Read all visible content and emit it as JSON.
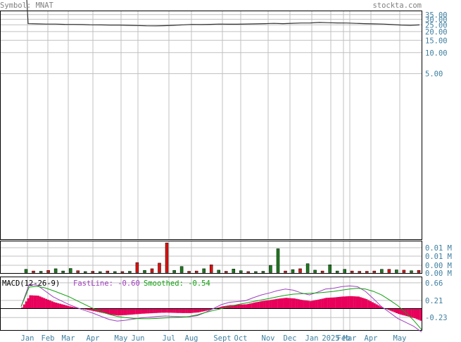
{
  "header": {
    "symbol_label": "Symbol: MNAT",
    "site": "stockta.com"
  },
  "colors": {
    "grid": "#c0c0c0",
    "text_gray": "#808080",
    "price_line": "#333333",
    "vol_up": "#1b7a1b",
    "vol_down": "#dd1111",
    "macd_hist": "#e8005a",
    "fast_line": "#a040c0",
    "smooth_line": "#10a010",
    "fast_label": "#a040c0",
    "smooth_label": "#10a010",
    "axis_label": "#3f7fa0"
  },
  "chart_data": [
    {
      "type": "line",
      "name": "price",
      "x_labels": [
        "Jan",
        "Feb",
        "Mar",
        "Apr",
        "May",
        "Jun",
        "Jul",
        "Aug",
        "Sept",
        "Oct",
        "Nov",
        "Dec",
        "Jan",
        "2025",
        "Feb",
        "Mar",
        "Apr",
        "May"
      ],
      "y_ticks": [
        "35.00",
        "30.00",
        "25.00",
        "20.00",
        "15.00",
        "10.00",
        "5.00"
      ],
      "y_tick_values": [
        35,
        30,
        25,
        20,
        15,
        10,
        5
      ],
      "y_scale": "log",
      "values": [
        220,
        26.0,
        25.8,
        25.6,
        25.6,
        25.4,
        25.3,
        25.2,
        25.0,
        24.9,
        24.8,
        24.8,
        24.6,
        24.4,
        24.2,
        24.1,
        24.3,
        24.6,
        25.0,
        25.3,
        25.2,
        25.4,
        25.6,
        25.5,
        25.5,
        25.7,
        25.8,
        26.0,
        26.2,
        26.0,
        26.3,
        26.5,
        26.6,
        27.0,
        26.8,
        26.6,
        26.5,
        26.2,
        26.0,
        25.8,
        25.6,
        25.2,
        24.8,
        24.6,
        24.9
      ]
    },
    {
      "type": "bar",
      "name": "volume",
      "y_ticks": [
        "0.01 M",
        "0.01 M",
        "0.00 M",
        "0.00 M"
      ],
      "bars": [
        {
          "d": "Jan",
          "v": 0.0012,
          "up": true
        },
        {
          "d": "Jan",
          "v": 0.0006,
          "up": false
        },
        {
          "d": "Feb",
          "v": 0.0005,
          "up": true
        },
        {
          "d": "Feb",
          "v": 0.0008,
          "up": false
        },
        {
          "d": "Feb",
          "v": 0.0014,
          "up": true
        },
        {
          "d": "Feb",
          "v": 0.0006,
          "up": true
        },
        {
          "d": "Mar",
          "v": 0.0015,
          "up": true
        },
        {
          "d": "Mar",
          "v": 0.0007,
          "up": false
        },
        {
          "d": "Mar",
          "v": 0.0004,
          "up": true
        },
        {
          "d": "Apr",
          "v": 0.0005,
          "up": false
        },
        {
          "d": "Apr",
          "v": 0.0003,
          "up": true
        },
        {
          "d": "May",
          "v": 0.0006,
          "up": false
        },
        {
          "d": "May",
          "v": 0.0004,
          "up": true
        },
        {
          "d": "Jun",
          "v": 0.0004,
          "up": false
        },
        {
          "d": "Jun",
          "v": 0.0005,
          "up": true
        },
        {
          "d": "Jul",
          "v": 0.0036,
          "up": false
        },
        {
          "d": "Jul",
          "v": 0.0008,
          "up": true
        },
        {
          "d": "Jul",
          "v": 0.0014,
          "up": false
        },
        {
          "d": "Jul",
          "v": 0.0034,
          "up": false
        },
        {
          "d": "Jul",
          "v": 0.0106,
          "up": false
        },
        {
          "d": "Aug",
          "v": 0.0008,
          "up": true
        },
        {
          "d": "Aug",
          "v": 0.0022,
          "up": true
        },
        {
          "d": "Aug",
          "v": 0.0005,
          "up": false
        },
        {
          "d": "Aug",
          "v": 0.0006,
          "up": false
        },
        {
          "d": "Aug",
          "v": 0.0014,
          "up": true
        },
        {
          "d": "Sept",
          "v": 0.0028,
          "up": false
        },
        {
          "d": "Sept",
          "v": 0.0009,
          "up": true
        },
        {
          "d": "Sept",
          "v": 0.0005,
          "up": false
        },
        {
          "d": "Oct",
          "v": 0.0013,
          "up": true
        },
        {
          "d": "Oct",
          "v": 0.0007,
          "up": true
        },
        {
          "d": "Oct",
          "v": 0.0004,
          "up": false
        },
        {
          "d": "Nov",
          "v": 0.0004,
          "up": true
        },
        {
          "d": "Nov",
          "v": 0.0005,
          "up": true
        },
        {
          "d": "Dec",
          "v": 0.0026,
          "up": true
        },
        {
          "d": "Dec",
          "v": 0.0085,
          "up": true
        },
        {
          "d": "Dec",
          "v": 0.0006,
          "up": false
        },
        {
          "d": "Dec",
          "v": 0.0011,
          "up": true
        },
        {
          "d": "Dec",
          "v": 0.0014,
          "up": false
        },
        {
          "d": "Jan",
          "v": 0.0032,
          "up": true
        },
        {
          "d": "Jan",
          "v": 0.0009,
          "up": true
        },
        {
          "d": "Jan",
          "v": 0.0006,
          "up": false
        },
        {
          "d": "Jan",
          "v": 0.0028,
          "up": true
        },
        {
          "d": "Feb",
          "v": 0.0006,
          "up": true
        },
        {
          "d": "Feb",
          "v": 0.0012,
          "up": true
        },
        {
          "d": "Feb",
          "v": 0.0006,
          "up": false
        },
        {
          "d": "Mar",
          "v": 0.0005,
          "up": false
        },
        {
          "d": "Mar",
          "v": 0.0005,
          "up": false
        },
        {
          "d": "Apr",
          "v": 0.0006,
          "up": false
        },
        {
          "d": "Apr",
          "v": 0.0012,
          "up": true
        },
        {
          "d": "Apr",
          "v": 0.0012,
          "up": false
        },
        {
          "d": "Apr",
          "v": 0.001,
          "up": true
        },
        {
          "d": "May",
          "v": 0.0009,
          "up": false
        },
        {
          "d": "May",
          "v": 0.0007,
          "up": true
        },
        {
          "d": "May",
          "v": 0.0008,
          "up": false
        }
      ]
    },
    {
      "type": "line",
      "name": "macd",
      "title": "MACD(12-26-9)",
      "fast_label": "FastLine: -0.60",
      "smooth_label": "Smoothed: -0.54",
      "y_ticks": [
        "0.66",
        "0.21",
        "-0.23"
      ],
      "y_tick_values": [
        0.66,
        0.21,
        -0.23
      ],
      "ylim": [
        -0.55,
        0.82
      ],
      "fast": [
        0.05,
        0.62,
        0.6,
        0.45,
        0.3,
        0.2,
        0.1,
        0.02,
        -0.05,
        -0.12,
        -0.2,
        -0.28,
        -0.32,
        -0.3,
        -0.27,
        -0.24,
        -0.22,
        -0.2,
        -0.19,
        -0.2,
        -0.21,
        -0.21,
        -0.18,
        -0.1,
        0.0,
        0.1,
        0.16,
        0.18,
        0.2,
        0.28,
        0.35,
        0.4,
        0.46,
        0.5,
        0.47,
        0.4,
        0.35,
        0.42,
        0.5,
        0.52,
        0.56,
        0.58,
        0.56,
        0.44,
        0.25,
        0.05,
        -0.1,
        -0.25,
        -0.35,
        -0.45,
        -0.6
      ],
      "smooth": [
        0.05,
        0.55,
        0.57,
        0.53,
        0.46,
        0.38,
        0.3,
        0.2,
        0.1,
        0.0,
        -0.08,
        -0.15,
        -0.2,
        -0.23,
        -0.25,
        -0.26,
        -0.26,
        -0.25,
        -0.24,
        -0.23,
        -0.22,
        -0.2,
        -0.16,
        -0.1,
        -0.05,
        0.0,
        0.05,
        0.1,
        0.14,
        0.18,
        0.22,
        0.26,
        0.3,
        0.34,
        0.37,
        0.38,
        0.39,
        0.4,
        0.42,
        0.44,
        0.47,
        0.5,
        0.52,
        0.5,
        0.44,
        0.35,
        0.22,
        0.08,
        -0.1,
        -0.3,
        -0.54
      ]
    }
  ]
}
